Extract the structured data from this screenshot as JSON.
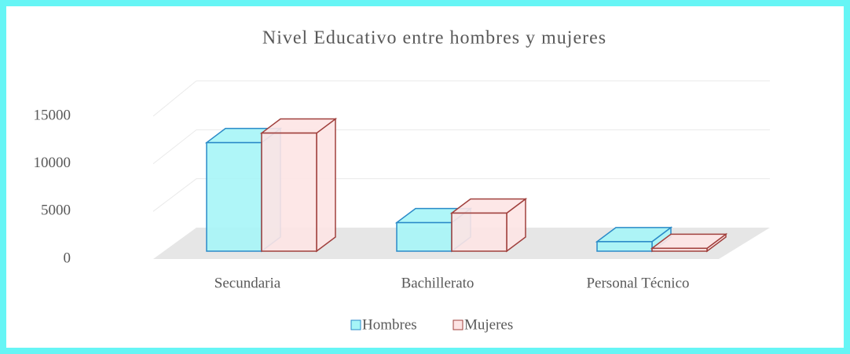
{
  "chart_data": {
    "type": "bar3d",
    "title": "Nivel Educativo entre hombres y mujeres",
    "categories": [
      "Secundaria",
      "Bachillerato",
      "Personal Técnico"
    ],
    "series": [
      {
        "name": "Hombres",
        "color": "#a6f5f7",
        "edge": "#2a8ac8",
        "values": [
          11400,
          3000,
          1000
        ]
      },
      {
        "name": "Mujeres",
        "color": "#fde4e4",
        "edge": "#a0403d",
        "values": [
          12400,
          4000,
          300
        ]
      }
    ],
    "ylim": [
      0,
      15000
    ],
    "yticks": [
      0,
      5000,
      10000,
      15000
    ],
    "grid": true,
    "legend": "bottom"
  }
}
